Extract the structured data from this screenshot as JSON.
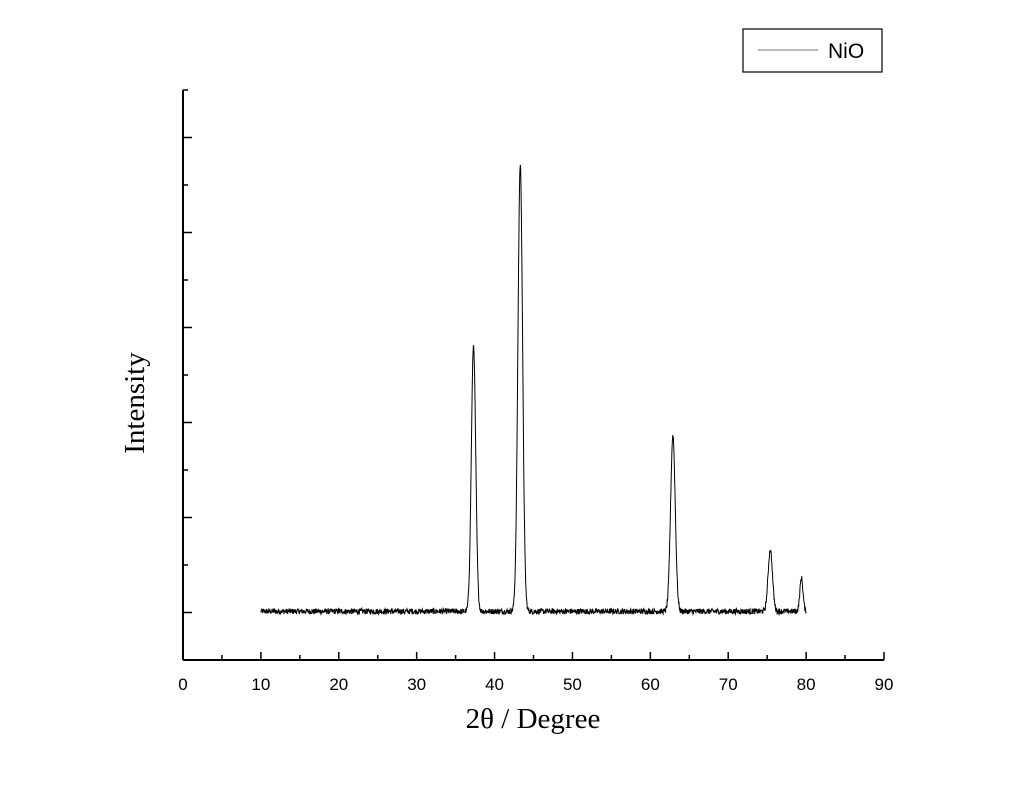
{
  "chart_data": {
    "type": "line",
    "xlabel": "2θ / Degree",
    "ylabel": "Intensity",
    "xlim": [
      0,
      90
    ],
    "ylim": [
      0,
      12
    ],
    "x_ticks": [
      0,
      10,
      20,
      30,
      40,
      50,
      60,
      70,
      80,
      90
    ],
    "y_tick_labels_shown": false,
    "grid": false,
    "legend_position": "top-right",
    "baseline_intensity": 1,
    "x_range_data": [
      10,
      80
    ],
    "series": [
      {
        "name": "NiO",
        "color": "#000000",
        "peaks": [
          {
            "x": 37.3,
            "y": 6.6
          },
          {
            "x": 43.3,
            "y": 10.4
          },
          {
            "x": 62.9,
            "y": 4.7
          },
          {
            "x": 75.4,
            "y": 2.3
          },
          {
            "x": 79.4,
            "y": 1.7
          }
        ]
      }
    ]
  }
}
